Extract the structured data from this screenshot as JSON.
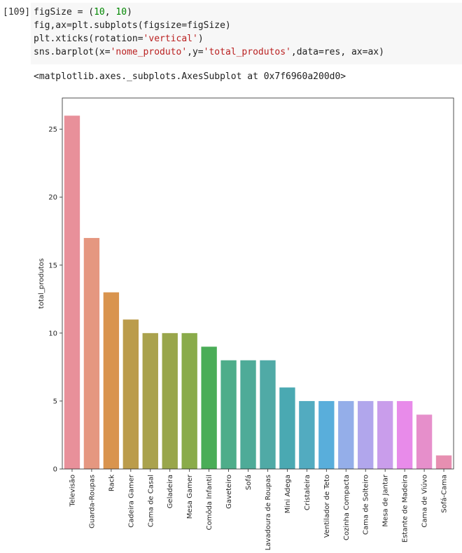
{
  "cell": {
    "prompt": "[109]",
    "code_lines": [
      [
        {
          "t": "figSize = (",
          "c": ""
        },
        {
          "t": "10",
          "c": "num"
        },
        {
          "t": ", ",
          "c": ""
        },
        {
          "t": "10",
          "c": "num"
        },
        {
          "t": ")",
          "c": ""
        }
      ],
      [
        {
          "t": "fig,ax=plt.subplots(figsize=figSize)",
          "c": ""
        }
      ],
      [
        {
          "t": "plt.xticks(rotation=",
          "c": ""
        },
        {
          "t": "'vertical'",
          "c": "str"
        },
        {
          "t": ")",
          "c": ""
        }
      ],
      [
        {
          "t": "sns.barplot(x=",
          "c": ""
        },
        {
          "t": "'nome_produto'",
          "c": "str"
        },
        {
          "t": ",y=",
          "c": ""
        },
        {
          "t": "'total_produtos'",
          "c": "str"
        },
        {
          "t": ",data=res, ax=ax)",
          "c": ""
        }
      ]
    ],
    "output": "<matplotlib.axes._subplots.AxesSubplot at 0x7f6960a200d0>"
  },
  "chart_data": {
    "type": "bar",
    "ylabel": "total_produtos",
    "ylim": [
      0,
      27.3
    ],
    "yticks": [
      0,
      5,
      10,
      15,
      20,
      25
    ],
    "grid": false,
    "legend": "none",
    "categories": [
      "Televisão",
      "Guarda-Roupas",
      "Rack",
      "Cadeira Gamer",
      "Cama de Casal",
      "Geladeira",
      "Mesa Gamer",
      "Comôda Infantil",
      "Gaveteiro",
      "Sofá",
      "Lavadoura de Roupas",
      "Mini Adega",
      "Cristaleira",
      "Ventilador de Teto",
      "Cozinha Compacta",
      "Cama de Solteiro",
      "Mesa de Jantar",
      "Estante de Madeira",
      "Cama de Viúvo",
      "Sofá-Cama"
    ],
    "values": [
      26,
      17,
      13,
      11,
      10,
      10,
      10,
      9,
      8,
      8,
      8,
      6,
      5,
      5,
      5,
      5,
      5,
      5,
      4,
      1
    ],
    "colors": [
      "#e8909a",
      "#e59780",
      "#d9944e",
      "#bb9c4b",
      "#aaa24d",
      "#99a64b",
      "#8aab4a",
      "#4aad57",
      "#4ead8a",
      "#4eab98",
      "#50aaa6",
      "#4aa9b2",
      "#52abc0",
      "#59aedb",
      "#94aee9",
      "#b1a6ec",
      "#c99deb",
      "#e88bea",
      "#e68fcb",
      "#e78fb1"
    ]
  }
}
